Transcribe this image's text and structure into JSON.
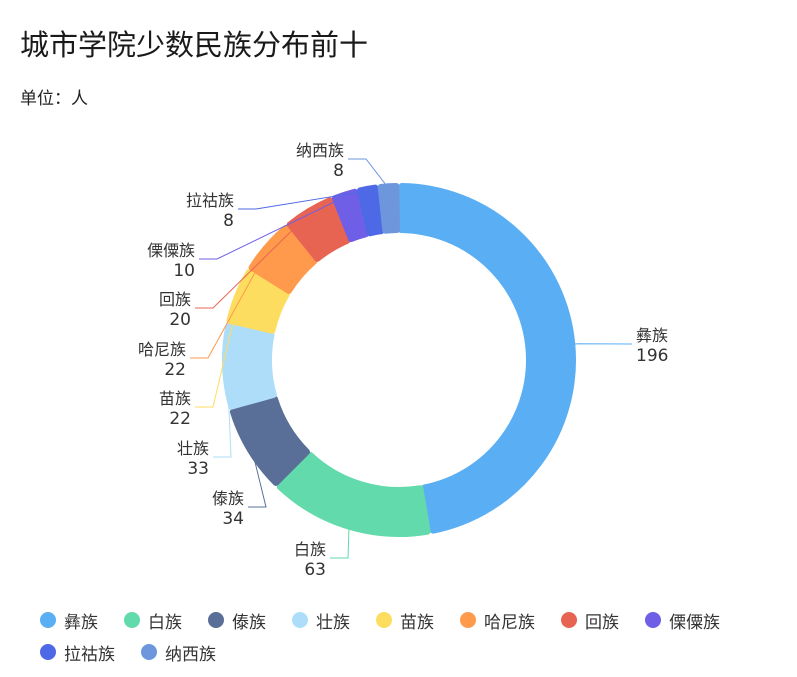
{
  "title": "城市学院少数民族分布前十",
  "unit_label": "单位：人",
  "chart_data": {
    "type": "pie",
    "title": "城市学院少数民族分布前十",
    "subtitle": "单位：人",
    "legend_position": "bottom",
    "categories": [
      "彝族",
      "白族",
      "傣族",
      "壮族",
      "苗族",
      "哈尼族",
      "回族",
      "傈僳族",
      "拉祜族",
      "纳西族"
    ],
    "values": [
      196,
      63,
      34,
      33,
      22,
      22,
      20,
      10,
      8,
      8
    ],
    "colors": [
      "#5AAEF3",
      "#62DAAB",
      "#5A6F98",
      "#AEDDF9",
      "#FDDD60",
      "#FF9A4D",
      "#E86452",
      "#6E5FE6",
      "#4E69E6",
      "#6D96DD"
    ]
  }
}
